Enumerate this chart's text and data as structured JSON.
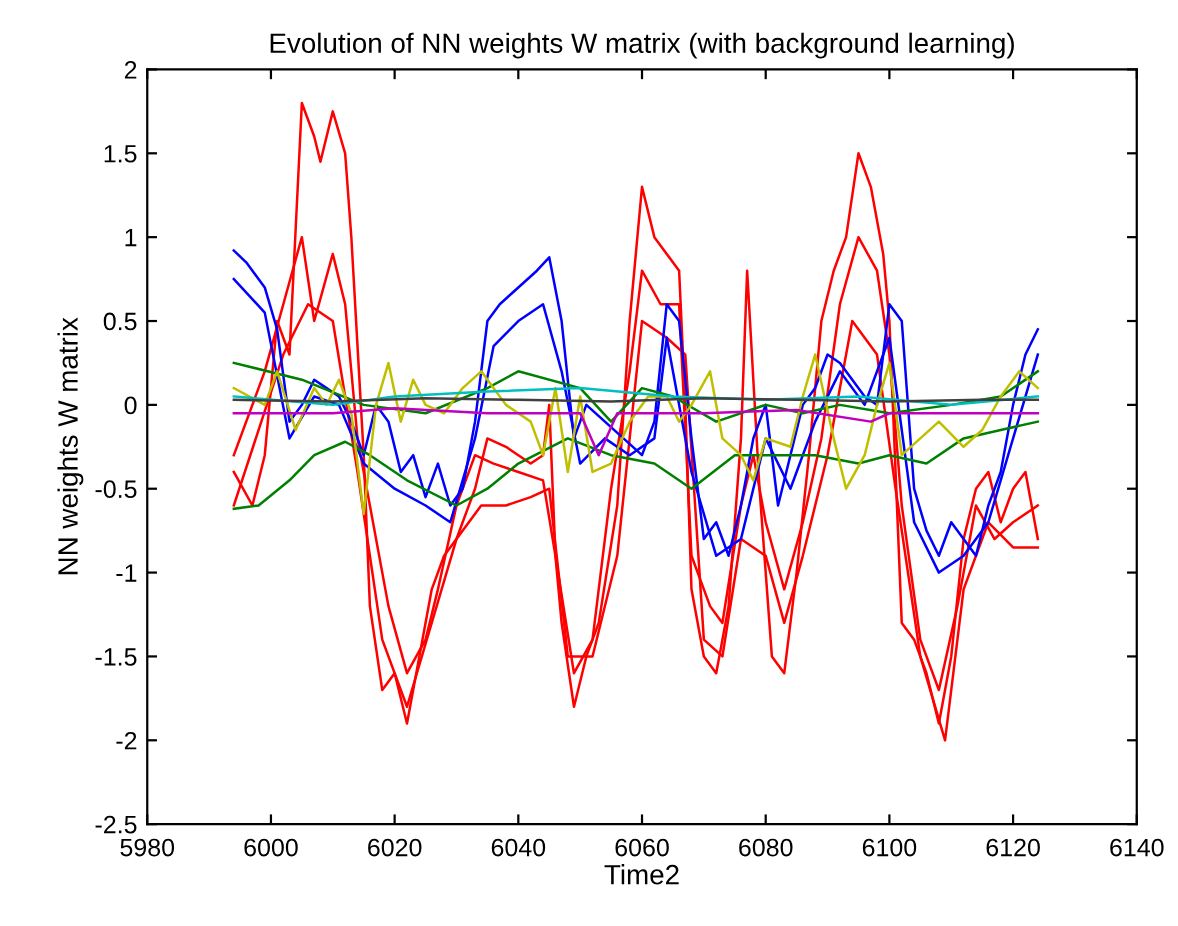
{
  "chart_data": {
    "type": "line",
    "title": "Evolution of NN weights W matrix (with background learning)",
    "xlabel": "Time2",
    "ylabel": "NN weights W matrix",
    "xlim": [
      5980,
      6140
    ],
    "xticks": [
      5980,
      6000,
      6020,
      6040,
      6060,
      6080,
      6100,
      6120,
      6140
    ],
    "ylim": [
      -2.5,
      2
    ],
    "yticks": [
      -2.5,
      -2,
      -1.5,
      -1,
      -0.5,
      0,
      0.5,
      1,
      1.5,
      2
    ],
    "grid": false,
    "marker": "none",
    "line_style": "solid",
    "series": [
      {
        "color": "#ff0000",
        "x": [
          5994,
          5997,
          5999,
          6001,
          6003,
          6005,
          6007,
          6008,
          6010,
          6012,
          6013,
          6015,
          6016,
          6018,
          6020,
          6022,
          6024,
          6026,
          6028,
          6030,
          6033,
          6035,
          6038,
          6040,
          6042,
          6044,
          6045,
          6046,
          6047,
          6049,
          6051,
          6053,
          6056,
          6058,
          6060,
          6062,
          6064,
          6066,
          6067,
          6068,
          6070,
          6072,
          6074,
          6076,
          6077,
          6079,
          6081,
          6083,
          6085,
          6087,
          6089,
          6091,
          6093,
          6095,
          6097,
          6099,
          6100,
          6102,
          6104,
          6106,
          6108,
          6110,
          6112,
          6114,
          6116,
          6118,
          6120,
          6122,
          6124
        ],
        "values": [
          -0.4,
          -0.6,
          -0.3,
          0.5,
          0.3,
          1.8,
          1.6,
          1.45,
          1.75,
          1.5,
          1.0,
          -0.3,
          -1.2,
          -1.7,
          -1.6,
          -1.9,
          -1.5,
          -1.1,
          -0.9,
          -0.8,
          -0.5,
          -0.2,
          -0.25,
          -0.3,
          -0.35,
          -0.3,
          0.0,
          -0.9,
          -1.3,
          -1.8,
          -1.5,
          -1.3,
          -0.6,
          0.5,
          1.3,
          1.0,
          0.9,
          0.8,
          0.0,
          -1.1,
          -1.5,
          -1.6,
          -1.2,
          -0.2,
          0.8,
          -0.5,
          -1.5,
          -1.6,
          -1.0,
          -0.3,
          0.5,
          0.8,
          1.0,
          1.5,
          1.3,
          0.9,
          0.5,
          -1.3,
          -1.4,
          -1.6,
          -1.9,
          -1.5,
          -0.8,
          -0.5,
          -0.4,
          -0.7,
          -0.5,
          -0.4,
          -0.8
        ]
      },
      {
        "color": "#ff0000",
        "x": [
          5994,
          5999,
          6002,
          6005,
          6007,
          6010,
          6012,
          6014,
          6016,
          6019,
          6022,
          6025,
          6027,
          6030,
          6033,
          6036,
          6040,
          6044,
          6046,
          6049,
          6052,
          6055,
          6058,
          6060,
          6063,
          6066,
          6068,
          6071,
          6073,
          6076,
          6078,
          6080,
          6083,
          6086,
          6089,
          6092,
          6095,
          6098,
          6100,
          6102,
          6105,
          6108,
          6111,
          6114,
          6117,
          6120,
          6124
        ],
        "values": [
          -0.3,
          0.2,
          0.6,
          1.0,
          0.5,
          0.9,
          0.6,
          -0.2,
          -0.6,
          -1.2,
          -1.6,
          -1.4,
          -1.1,
          -0.6,
          -0.3,
          -0.35,
          -0.4,
          -0.45,
          -0.9,
          -1.6,
          -1.4,
          -0.5,
          0.2,
          0.8,
          0.6,
          0.6,
          -0.9,
          -1.2,
          -1.3,
          -0.6,
          -0.3,
          -0.7,
          -1.1,
          -0.7,
          -0.2,
          0.6,
          1.0,
          0.8,
          0.3,
          -0.6,
          -1.4,
          -1.7,
          -1.2,
          -0.6,
          -0.8,
          -0.7,
          -0.6
        ]
      },
      {
        "color": "#ff0000",
        "x": [
          5994,
          6002,
          6006,
          6010,
          6014,
          6018,
          6022,
          6026,
          6030,
          6034,
          6038,
          6042,
          6045,
          6048,
          6052,
          6056,
          6060,
          6064,
          6067,
          6070,
          6073,
          6076,
          6080,
          6083,
          6086,
          6090,
          6094,
          6098,
          6101,
          6105,
          6109,
          6112,
          6116,
          6120,
          6124
        ],
        "values": [
          -0.6,
          0.3,
          0.6,
          0.5,
          -0.4,
          -1.4,
          -1.8,
          -1.3,
          -0.8,
          -0.6,
          -0.6,
          -0.55,
          -0.5,
          -1.5,
          -1.5,
          -0.9,
          0.5,
          0.4,
          0.3,
          -1.4,
          -1.5,
          -0.8,
          -0.9,
          -1.3,
          -0.9,
          -0.3,
          0.5,
          0.3,
          -0.5,
          -1.5,
          -2.0,
          -1.1,
          -0.7,
          -0.85,
          -0.85
        ]
      },
      {
        "color": "#0000ff",
        "x": [
          5994,
          5996,
          5999,
          6001,
          6003,
          6005,
          6007,
          6009,
          6011,
          6013,
          6015,
          6017,
          6019,
          6021,
          6023,
          6025,
          6027,
          6029,
          6031,
          6033,
          6035,
          6037,
          6040,
          6043,
          6045,
          6047,
          6049,
          6051,
          6054,
          6057,
          6060,
          6062,
          6064,
          6066,
          6068,
          6070,
          6072,
          6074,
          6076,
          6078,
          6080,
          6082,
          6084,
          6086,
          6088,
          6090,
          6092,
          6094,
          6096,
          6098,
          6100,
          6102,
          6104,
          6106,
          6108,
          6110,
          6112,
          6114,
          6116,
          6118,
          6120,
          6122,
          6124
        ],
        "values": [
          0.92,
          0.85,
          0.7,
          0.45,
          -0.1,
          0.0,
          0.15,
          0.1,
          0.05,
          -0.1,
          -0.3,
          0.0,
          -0.1,
          -0.4,
          -0.3,
          -0.55,
          -0.35,
          -0.6,
          -0.5,
          -0.1,
          0.5,
          0.6,
          0.7,
          0.8,
          0.88,
          0.5,
          -0.2,
          0.0,
          -0.1,
          -0.2,
          -0.3,
          -0.1,
          0.6,
          0.5,
          -0.2,
          -0.8,
          -0.7,
          -0.9,
          -0.6,
          -0.2,
          0.0,
          -0.6,
          -0.3,
          0.0,
          0.1,
          0.3,
          0.25,
          0.15,
          0.05,
          0.0,
          0.6,
          0.5,
          -0.5,
          -0.75,
          -0.9,
          -0.7,
          -0.8,
          -0.9,
          -0.6,
          -0.4,
          0.0,
          0.3,
          0.45
        ]
      },
      {
        "color": "#0000ff",
        "x": [
          5994,
          5999,
          6003,
          6007,
          6011,
          6015,
          6020,
          6025,
          6029,
          6033,
          6036,
          6040,
          6044,
          6047,
          6050,
          6054,
          6058,
          6062,
          6064,
          6068,
          6072,
          6076,
          6080,
          6084,
          6088,
          6092,
          6096,
          6100,
          6104,
          6108,
          6112,
          6116,
          6120,
          6124
        ],
        "values": [
          0.75,
          0.55,
          -0.2,
          0.05,
          0.0,
          -0.35,
          -0.5,
          -0.6,
          -0.7,
          -0.2,
          0.35,
          0.5,
          0.6,
          0.2,
          -0.35,
          -0.2,
          -0.3,
          -0.2,
          0.4,
          -0.4,
          -0.9,
          -0.8,
          -0.2,
          -0.5,
          -0.1,
          0.2,
          0.0,
          0.4,
          -0.7,
          -1.0,
          -0.9,
          -0.7,
          -0.2,
          0.3
        ]
      },
      {
        "color": "#008000",
        "x": [
          5994,
          6005,
          6015,
          6025,
          6035,
          6040,
          6050,
          6055,
          6060,
          6065,
          6072,
          6080,
          6086,
          6092,
          6100,
          6110,
          6118,
          6124
        ],
        "values": [
          0.25,
          0.15,
          0.0,
          -0.05,
          0.1,
          0.2,
          0.1,
          -0.1,
          0.1,
          0.05,
          -0.1,
          0.0,
          -0.05,
          0.0,
          -0.05,
          0.0,
          0.05,
          0.2
        ]
      },
      {
        "color": "#008000",
        "x": [
          5994,
          5998,
          6003,
          6007,
          6012,
          6016,
          6022,
          6030,
          6035,
          6040,
          6048,
          6055,
          6062,
          6068,
          6075,
          6080,
          6088,
          6095,
          6100,
          6106,
          6112,
          6118,
          6124
        ],
        "values": [
          -0.62,
          -0.6,
          -0.45,
          -0.3,
          -0.22,
          -0.3,
          -0.45,
          -0.6,
          -0.5,
          -0.35,
          -0.2,
          -0.3,
          -0.35,
          -0.5,
          -0.3,
          -0.3,
          -0.3,
          -0.35,
          -0.3,
          -0.35,
          -0.2,
          -0.15,
          -0.1
        ]
      },
      {
        "color": "#bfbf00",
        "x": [
          5994,
          5999,
          6001,
          6004,
          6007,
          6009,
          6011,
          6013,
          6015,
          6017,
          6019,
          6021,
          6023,
          6025,
          6028,
          6031,
          6034,
          6038,
          6042,
          6044,
          6046,
          6048,
          6050,
          6052,
          6055,
          6058,
          6061,
          6064,
          6066,
          6068,
          6071,
          6073,
          6076,
          6078,
          6080,
          6084,
          6086,
          6088,
          6091,
          6093,
          6096,
          6098,
          6100,
          6102,
          6105,
          6108,
          6112,
          6115,
          6118,
          6121,
          6124
        ],
        "values": [
          0.1,
          0.0,
          0.2,
          -0.15,
          0.1,
          0.0,
          0.15,
          -0.05,
          -0.65,
          0.0,
          0.25,
          -0.1,
          0.15,
          0.0,
          -0.05,
          0.1,
          0.2,
          0.0,
          -0.1,
          -0.3,
          0.1,
          -0.4,
          0.05,
          -0.4,
          -0.35,
          -0.1,
          0.05,
          0.05,
          -0.1,
          0.0,
          0.2,
          -0.2,
          -0.3,
          -0.45,
          -0.2,
          -0.25,
          0.05,
          0.3,
          -0.2,
          -0.5,
          -0.3,
          0.0,
          0.25,
          -0.3,
          -0.2,
          -0.1,
          -0.25,
          -0.15,
          0.05,
          0.2,
          0.1
        ]
      },
      {
        "color": "#00bfbf",
        "x": [
          5994,
          6010,
          6020,
          6035,
          6050,
          6065,
          6080,
          6095,
          6110,
          6124
        ],
        "values": [
          0.05,
          0.0,
          0.05,
          0.08,
          0.1,
          0.05,
          0.03,
          0.05,
          0.0,
          0.05
        ]
      },
      {
        "color": "#bf00bf",
        "x": [
          5994,
          6010,
          6020,
          6035,
          6050,
          6053,
          6056,
          6070,
          6085,
          6097,
          6100,
          6110,
          6124
        ],
        "values": [
          -0.05,
          -0.05,
          -0.02,
          -0.05,
          -0.05,
          -0.3,
          -0.05,
          -0.05,
          -0.03,
          -0.1,
          -0.05,
          -0.05,
          -0.05
        ]
      },
      {
        "color": "#404040",
        "x": [
          5994,
          6010,
          6025,
          6040,
          6055,
          6070,
          6085,
          6100,
          6115,
          6124
        ],
        "values": [
          0.03,
          0.02,
          0.04,
          0.03,
          0.02,
          0.04,
          0.03,
          0.02,
          0.03,
          0.03
        ]
      }
    ]
  }
}
